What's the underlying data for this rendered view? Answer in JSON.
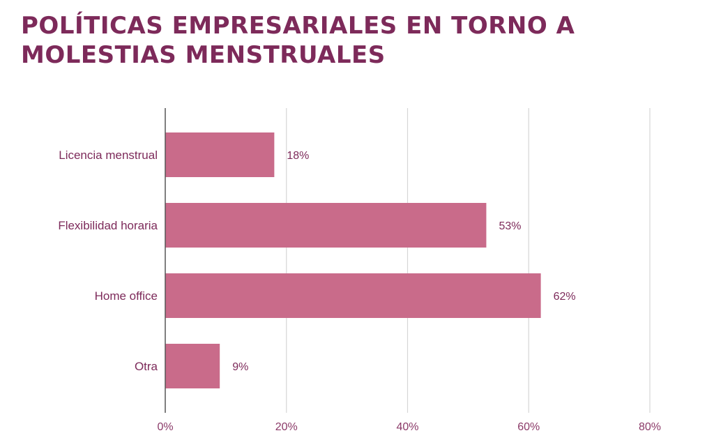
{
  "chart_data": {
    "type": "bar",
    "orientation": "horizontal",
    "title": "POLÍTICAS EMPRESARIALES EN TORNO A MOLESTIAS MENSTRUALES",
    "categories": [
      "Licencia menstrual",
      "Flexibilidad horaria",
      "Home office",
      "Otra"
    ],
    "values": [
      18,
      53,
      62,
      9
    ],
    "value_labels": [
      "18%",
      "53%",
      "62%",
      "9%"
    ],
    "xlim": [
      0,
      80
    ],
    "xticks": [
      0,
      20,
      40,
      60,
      80
    ],
    "xtick_labels": [
      "0%",
      "20%",
      "40%",
      "60%",
      "80%"
    ],
    "grid": true,
    "bar_color": "#c96b8a",
    "text_color": "#7d2a5a"
  }
}
